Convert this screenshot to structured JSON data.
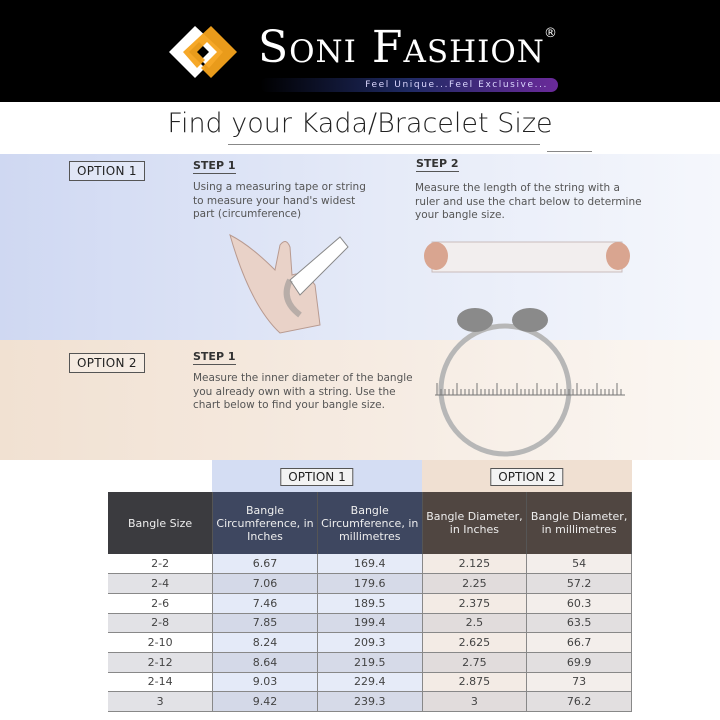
{
  "brand": {
    "name": "Soni Fashion",
    "registered": "®",
    "tagline": "Feel Unique...Feel Exclusive...",
    "colors": {
      "accent": "#f6a31c",
      "background": "#000000"
    }
  },
  "title": "Find your Kada/Bracelet Size",
  "option1": {
    "label": "OPTION 1",
    "step1": {
      "title": "STEP 1",
      "text": "Using a measuring tape or string to measure your hand's widest part (circumference)"
    },
    "step2": {
      "title": "STEP 2",
      "text": "Measure the length of the string with a ruler and use the chart below to determine your bangle size."
    }
  },
  "option2": {
    "label": "OPTION 2",
    "step1": {
      "title": "STEP 1",
      "text": "Measure the inner diameter of the bangle you already own with a string. Use the chart below to find your bangle size."
    }
  },
  "table": {
    "group_labels": [
      "OPTION 1",
      "OPTION 2"
    ],
    "headers": [
      "Bangle Size",
      "Bangle Circumference, in Inches",
      "Bangle Circumference, in millimetres",
      "Bangle Diameter, in Inches",
      "Bangle Diameter, in millimetres"
    ],
    "rows": [
      [
        "2-2",
        "6.67",
        "169.4",
        "2.125",
        "54"
      ],
      [
        "2-4",
        "7.06",
        "179.6",
        "2.25",
        "57.2"
      ],
      [
        "2-6",
        "7.46",
        "189.5",
        "2.375",
        "60.3"
      ],
      [
        "2-8",
        "7.85",
        "199.4",
        "2.5",
        "63.5"
      ],
      [
        "2-10",
        "8.24",
        "209.3",
        "2.625",
        "66.7"
      ],
      [
        "2-12",
        "8.64",
        "219.5",
        "2.75",
        "69.9"
      ],
      [
        "2-14",
        "9.03",
        "229.4",
        "2.875",
        "73"
      ],
      [
        "3",
        "9.42",
        "239.3",
        "3",
        "76.2"
      ]
    ]
  }
}
